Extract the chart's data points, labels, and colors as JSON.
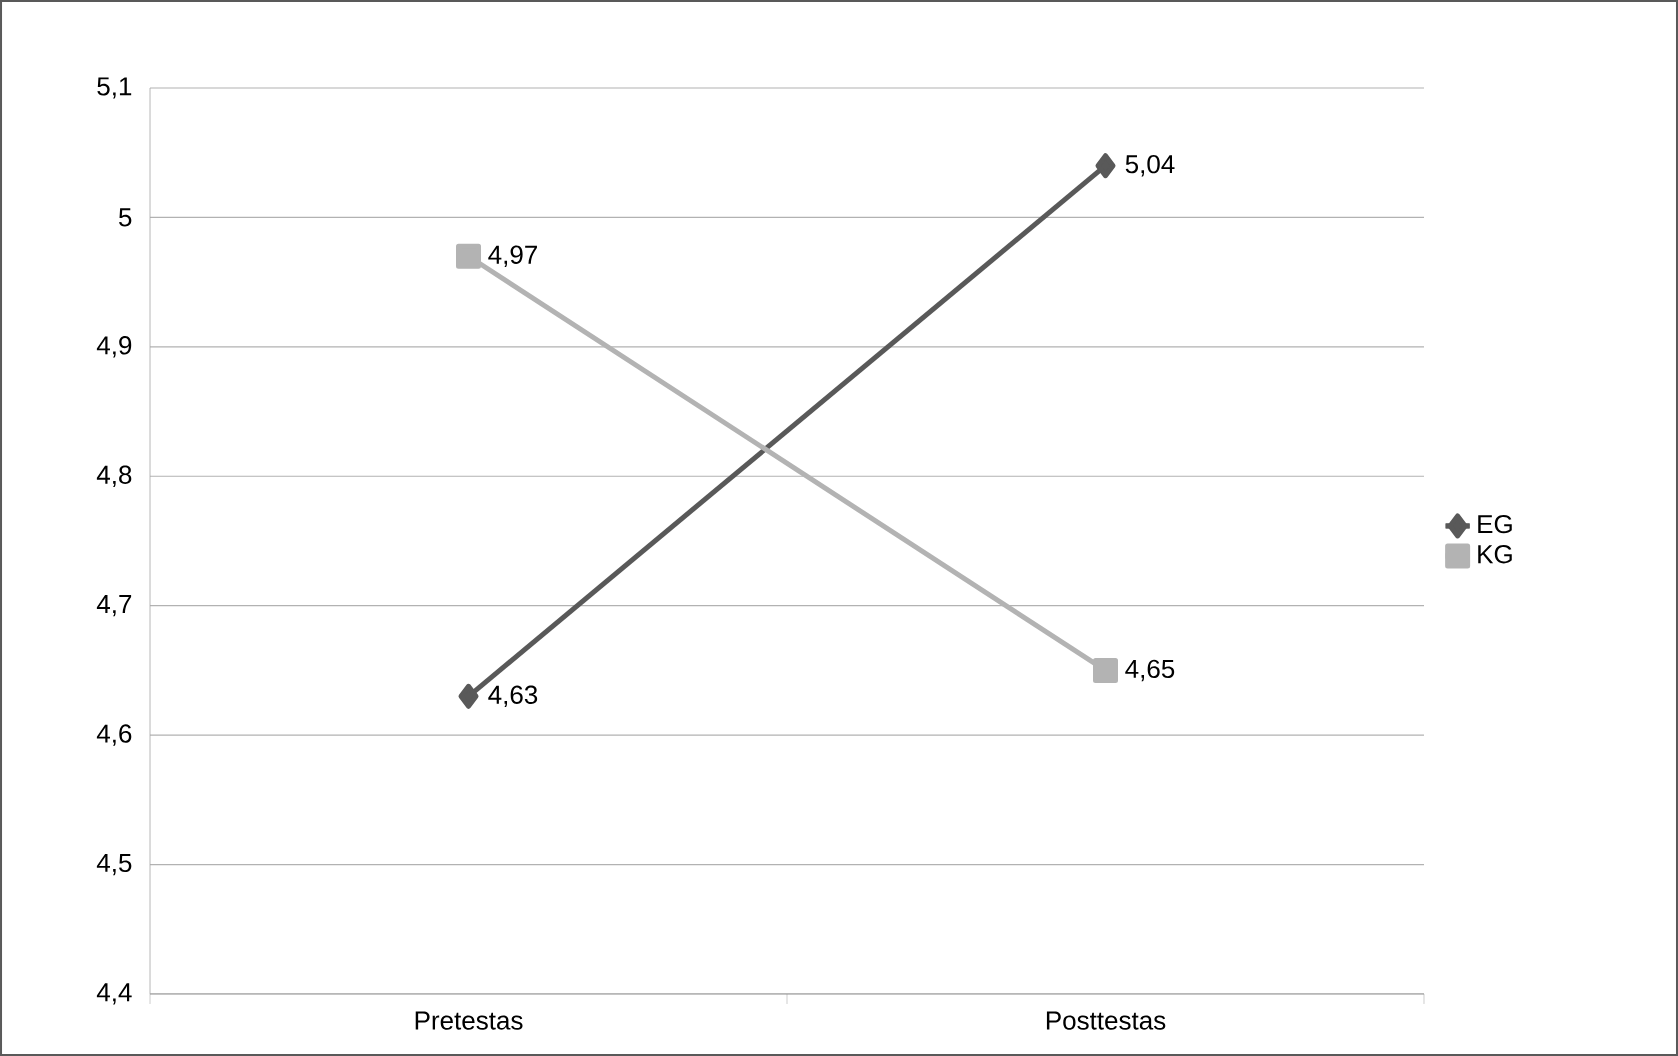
{
  "chart_data": {
    "type": "line",
    "categories": [
      "Pretestas",
      "Posttestas"
    ],
    "series": [
      {
        "name": "EG",
        "color": "#595959",
        "marker": "diamond",
        "values": [
          4.63,
          5.04
        ],
        "value_labels": [
          "4,63",
          "5,04"
        ]
      },
      {
        "name": "KG",
        "color": "#b3b3b3",
        "marker": "square",
        "values": [
          4.97,
          4.65
        ],
        "value_labels": [
          "4,97",
          "4,65"
        ]
      }
    ],
    "ylim": [
      4.4,
      5.1
    ],
    "yticks": [
      {
        "value": 4.4,
        "label": "4,4"
      },
      {
        "value": 4.5,
        "label": "4,5"
      },
      {
        "value": 4.6,
        "label": "4,6"
      },
      {
        "value": 4.7,
        "label": "4,7"
      },
      {
        "value": 4.8,
        "label": "4,8"
      },
      {
        "value": 4.9,
        "label": "4,9"
      },
      5,
      {
        "value": 5.1,
        "label": "5,1"
      }
    ],
    "grid": "y",
    "legend": "right"
  }
}
